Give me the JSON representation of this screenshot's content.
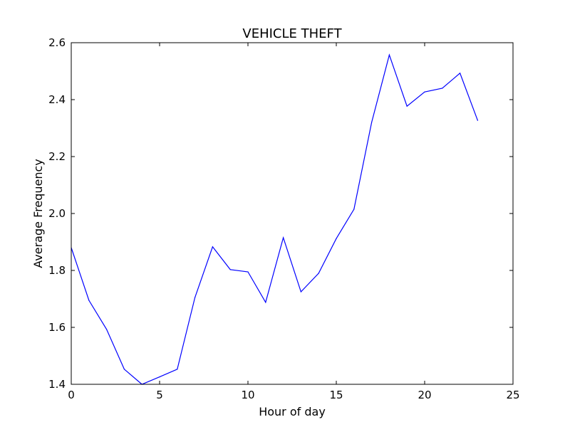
{
  "chart_data": {
    "type": "line",
    "title": "VEHICLE THEFT",
    "xlabel": "Hour of day",
    "ylabel": "Average Frequency",
    "xlim": [
      0,
      25
    ],
    "ylim": [
      1.4,
      2.6
    ],
    "xticks": [
      0,
      5,
      10,
      15,
      20,
      25
    ],
    "yticks": [
      1.4,
      1.6,
      1.8,
      2.0,
      2.2,
      2.4,
      2.6
    ],
    "xtick_labels": [
      "0",
      "5",
      "10",
      "15",
      "20",
      "25"
    ],
    "ytick_labels": [
      "1.4",
      "1.6",
      "1.8",
      "2.0",
      "2.2",
      "2.4",
      "2.6"
    ],
    "grid": false,
    "series": [
      {
        "color": "#0000ff",
        "x": [
          0,
          1,
          2,
          3,
          4,
          5,
          6,
          7,
          8,
          9,
          10,
          11,
          12,
          13,
          14,
          15,
          16,
          17,
          18,
          19,
          20,
          21,
          22,
          23
        ],
        "y": [
          1.88,
          1.695,
          1.593,
          1.453,
          1.4,
          1.426,
          1.453,
          1.705,
          1.883,
          1.803,
          1.795,
          1.688,
          1.915,
          1.725,
          1.79,
          1.912,
          2.015,
          2.32,
          2.557,
          2.377,
          2.427,
          2.44,
          2.493,
          2.327
        ]
      }
    ]
  }
}
